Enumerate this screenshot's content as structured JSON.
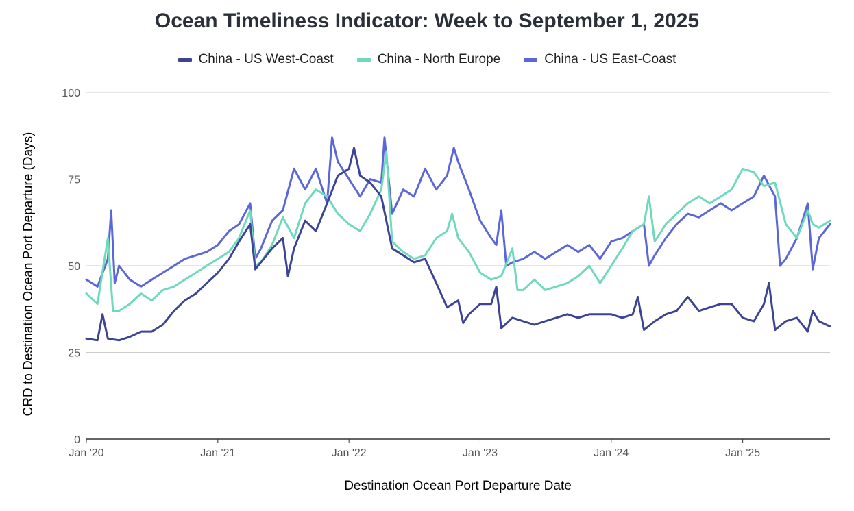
{
  "chart_data": {
    "type": "line",
    "title": "Ocean Timeliness Indicator: Week to September 1, 2025",
    "xlabel": "Destination Ocean Port Departure Date",
    "ylabel": "CRD to Destination Ocean Port Departure (Days)",
    "ylim": [
      0,
      100
    ],
    "yticks": [
      0,
      25,
      50,
      75,
      100
    ],
    "xlim": [
      "2020-01-01",
      "2025-09-01"
    ],
    "xticks": [
      {
        "date": "2020-01-01",
        "label": "Jan '20"
      },
      {
        "date": "2021-01-01",
        "label": "Jan '21"
      },
      {
        "date": "2022-01-01",
        "label": "Jan '22"
      },
      {
        "date": "2023-01-01",
        "label": "Jan '23"
      },
      {
        "date": "2024-01-01",
        "label": "Jan '24"
      },
      {
        "date": "2025-01-01",
        "label": "Jan '25"
      }
    ],
    "grid": true,
    "legend_position": "top",
    "series": [
      {
        "name": "China - US West-Coast",
        "color": "#3d4496",
        "points": [
          [
            "2020-01-01",
            29
          ],
          [
            "2020-02-01",
            28.5
          ],
          [
            "2020-02-15",
            36
          ],
          [
            "2020-03-01",
            29
          ],
          [
            "2020-04-01",
            28.5
          ],
          [
            "2020-05-01",
            29.5
          ],
          [
            "2020-06-01",
            31
          ],
          [
            "2020-07-01",
            31
          ],
          [
            "2020-08-01",
            33
          ],
          [
            "2020-09-01",
            37
          ],
          [
            "2020-10-01",
            40
          ],
          [
            "2020-11-01",
            42
          ],
          [
            "2020-12-01",
            45
          ],
          [
            "2021-01-01",
            48
          ],
          [
            "2021-02-01",
            52
          ],
          [
            "2021-03-01",
            57
          ],
          [
            "2021-04-01",
            62
          ],
          [
            "2021-04-15",
            49
          ],
          [
            "2021-05-01",
            51
          ],
          [
            "2021-06-01",
            55
          ],
          [
            "2021-07-01",
            58
          ],
          [
            "2021-07-15",
            47
          ],
          [
            "2021-08-01",
            55
          ],
          [
            "2021-09-01",
            63
          ],
          [
            "2021-10-01",
            60
          ],
          [
            "2021-11-01",
            68
          ],
          [
            "2021-12-01",
            76
          ],
          [
            "2022-01-01",
            78
          ],
          [
            "2022-01-15",
            84
          ],
          [
            "2022-02-01",
            76
          ],
          [
            "2022-03-01",
            74
          ],
          [
            "2022-04-01",
            70
          ],
          [
            "2022-05-01",
            55
          ],
          [
            "2022-06-01",
            53
          ],
          [
            "2022-07-01",
            51
          ],
          [
            "2022-08-01",
            52
          ],
          [
            "2022-09-01",
            45
          ],
          [
            "2022-10-01",
            38
          ],
          [
            "2022-11-01",
            40
          ],
          [
            "2022-11-15",
            33.5
          ],
          [
            "2022-12-01",
            36
          ],
          [
            "2023-01-01",
            39
          ],
          [
            "2023-02-01",
            39
          ],
          [
            "2023-02-15",
            44
          ],
          [
            "2023-03-01",
            32
          ],
          [
            "2023-04-01",
            35
          ],
          [
            "2023-05-01",
            34
          ],
          [
            "2023-06-01",
            33
          ],
          [
            "2023-07-01",
            34
          ],
          [
            "2023-08-01",
            35
          ],
          [
            "2023-09-01",
            36
          ],
          [
            "2023-10-01",
            35
          ],
          [
            "2023-11-01",
            36
          ],
          [
            "2023-12-01",
            36
          ],
          [
            "2024-01-01",
            36
          ],
          [
            "2024-02-01",
            35
          ],
          [
            "2024-03-01",
            36
          ],
          [
            "2024-03-15",
            41
          ],
          [
            "2024-04-01",
            31.5
          ],
          [
            "2024-05-01",
            34
          ],
          [
            "2024-06-01",
            36
          ],
          [
            "2024-07-01",
            37
          ],
          [
            "2024-08-01",
            41
          ],
          [
            "2024-09-01",
            37
          ],
          [
            "2024-10-01",
            38
          ],
          [
            "2024-11-01",
            39
          ],
          [
            "2024-12-01",
            39
          ],
          [
            "2025-01-01",
            35
          ],
          [
            "2025-02-01",
            34
          ],
          [
            "2025-03-01",
            39
          ],
          [
            "2025-03-15",
            45
          ],
          [
            "2025-04-01",
            31.5
          ],
          [
            "2025-05-01",
            34
          ],
          [
            "2025-06-01",
            35
          ],
          [
            "2025-07-01",
            31
          ],
          [
            "2025-07-15",
            37
          ],
          [
            "2025-08-01",
            34
          ],
          [
            "2025-09-01",
            32.5
          ]
        ]
      },
      {
        "name": "China - North Europe",
        "color": "#6fd9bd",
        "points": [
          [
            "2020-01-01",
            42
          ],
          [
            "2020-02-01",
            39
          ],
          [
            "2020-03-01",
            58
          ],
          [
            "2020-03-15",
            37
          ],
          [
            "2020-04-01",
            37
          ],
          [
            "2020-05-01",
            39
          ],
          [
            "2020-06-01",
            42
          ],
          [
            "2020-07-01",
            40
          ],
          [
            "2020-08-01",
            43
          ],
          [
            "2020-09-01",
            44
          ],
          [
            "2020-10-01",
            46
          ],
          [
            "2020-11-01",
            48
          ],
          [
            "2020-12-01",
            50
          ],
          [
            "2021-01-01",
            52
          ],
          [
            "2021-02-01",
            54
          ],
          [
            "2021-03-01",
            58
          ],
          [
            "2021-04-01",
            66
          ],
          [
            "2021-04-15",
            50
          ],
          [
            "2021-05-01",
            51
          ],
          [
            "2021-06-01",
            56
          ],
          [
            "2021-07-01",
            64
          ],
          [
            "2021-08-01",
            58
          ],
          [
            "2021-09-01",
            68
          ],
          [
            "2021-10-01",
            72
          ],
          [
            "2021-11-01",
            70
          ],
          [
            "2021-12-01",
            65
          ],
          [
            "2022-01-01",
            62
          ],
          [
            "2022-02-01",
            60
          ],
          [
            "2022-03-01",
            65
          ],
          [
            "2022-04-01",
            72
          ],
          [
            "2022-04-15",
            83
          ],
          [
            "2022-05-01",
            57
          ],
          [
            "2022-06-01",
            54
          ],
          [
            "2022-07-01",
            52
          ],
          [
            "2022-08-01",
            53
          ],
          [
            "2022-09-01",
            58
          ],
          [
            "2022-10-01",
            60
          ],
          [
            "2022-10-15",
            65
          ],
          [
            "2022-11-01",
            58
          ],
          [
            "2022-12-01",
            54
          ],
          [
            "2023-01-01",
            48
          ],
          [
            "2023-02-01",
            46
          ],
          [
            "2023-03-01",
            47
          ],
          [
            "2023-04-01",
            55
          ],
          [
            "2023-04-15",
            43
          ],
          [
            "2023-05-01",
            43
          ],
          [
            "2023-06-01",
            46
          ],
          [
            "2023-07-01",
            43
          ],
          [
            "2023-08-01",
            44
          ],
          [
            "2023-09-01",
            45
          ],
          [
            "2023-10-01",
            47
          ],
          [
            "2023-11-01",
            50
          ],
          [
            "2023-12-01",
            45
          ],
          [
            "2024-01-01",
            50
          ],
          [
            "2024-02-01",
            55
          ],
          [
            "2024-03-01",
            60
          ],
          [
            "2024-04-01",
            62
          ],
          [
            "2024-04-15",
            70
          ],
          [
            "2024-05-01",
            57
          ],
          [
            "2024-06-01",
            62
          ],
          [
            "2024-07-01",
            65
          ],
          [
            "2024-08-01",
            68
          ],
          [
            "2024-09-01",
            70
          ],
          [
            "2024-10-01",
            68
          ],
          [
            "2024-11-01",
            70
          ],
          [
            "2024-12-01",
            72
          ],
          [
            "2025-01-01",
            78
          ],
          [
            "2025-02-01",
            77
          ],
          [
            "2025-03-01",
            73
          ],
          [
            "2025-04-01",
            74
          ],
          [
            "2025-05-01",
            62
          ],
          [
            "2025-06-01",
            58
          ],
          [
            "2025-07-01",
            66
          ],
          [
            "2025-07-15",
            62
          ],
          [
            "2025-08-01",
            61
          ],
          [
            "2025-09-01",
            63
          ]
        ]
      },
      {
        "name": "China - US East-Coast",
        "color": "#5b67d8",
        "points": [
          [
            "2020-01-01",
            46
          ],
          [
            "2020-02-01",
            44
          ],
          [
            "2020-03-01",
            52
          ],
          [
            "2020-03-10",
            66
          ],
          [
            "2020-03-20",
            45
          ],
          [
            "2020-04-01",
            50
          ],
          [
            "2020-05-01",
            46
          ],
          [
            "2020-06-01",
            44
          ],
          [
            "2020-07-01",
            46
          ],
          [
            "2020-08-01",
            48
          ],
          [
            "2020-09-01",
            50
          ],
          [
            "2020-10-01",
            52
          ],
          [
            "2020-11-01",
            53
          ],
          [
            "2020-12-01",
            54
          ],
          [
            "2021-01-01",
            56
          ],
          [
            "2021-02-01",
            60
          ],
          [
            "2021-03-01",
            62
          ],
          [
            "2021-04-01",
            68
          ],
          [
            "2021-04-15",
            52
          ],
          [
            "2021-05-01",
            55
          ],
          [
            "2021-06-01",
            63
          ],
          [
            "2021-07-01",
            66
          ],
          [
            "2021-08-01",
            78
          ],
          [
            "2021-09-01",
            72
          ],
          [
            "2021-10-01",
            78
          ],
          [
            "2021-11-01",
            68
          ],
          [
            "2021-11-15",
            87
          ],
          [
            "2021-12-01",
            80
          ],
          [
            "2022-01-01",
            75
          ],
          [
            "2022-02-01",
            70
          ],
          [
            "2022-03-01",
            75
          ],
          [
            "2022-04-01",
            74
          ],
          [
            "2022-04-10",
            87
          ],
          [
            "2022-05-01",
            65
          ],
          [
            "2022-06-01",
            72
          ],
          [
            "2022-07-01",
            70
          ],
          [
            "2022-08-01",
            78
          ],
          [
            "2022-09-01",
            72
          ],
          [
            "2022-10-01",
            76
          ],
          [
            "2022-10-20",
            84
          ],
          [
            "2022-11-01",
            80
          ],
          [
            "2022-12-01",
            72
          ],
          [
            "2023-01-01",
            63
          ],
          [
            "2023-02-01",
            58
          ],
          [
            "2023-02-15",
            56
          ],
          [
            "2023-03-01",
            66
          ],
          [
            "2023-03-15",
            50
          ],
          [
            "2023-04-01",
            51
          ],
          [
            "2023-05-01",
            52
          ],
          [
            "2023-06-01",
            54
          ],
          [
            "2023-07-01",
            52
          ],
          [
            "2023-08-01",
            54
          ],
          [
            "2023-09-01",
            56
          ],
          [
            "2023-10-01",
            54
          ],
          [
            "2023-11-01",
            56
          ],
          [
            "2023-12-01",
            52
          ],
          [
            "2024-01-01",
            57
          ],
          [
            "2024-02-01",
            58
          ],
          [
            "2024-03-01",
            60
          ],
          [
            "2024-04-01",
            62
          ],
          [
            "2024-04-15",
            50
          ],
          [
            "2024-05-01",
            53
          ],
          [
            "2024-06-01",
            58
          ],
          [
            "2024-07-01",
            62
          ],
          [
            "2024-08-01",
            65
          ],
          [
            "2024-09-01",
            64
          ],
          [
            "2024-10-01",
            66
          ],
          [
            "2024-11-01",
            68
          ],
          [
            "2024-12-01",
            66
          ],
          [
            "2025-01-01",
            68
          ],
          [
            "2025-02-01",
            70
          ],
          [
            "2025-03-01",
            76
          ],
          [
            "2025-04-01",
            70
          ],
          [
            "2025-04-15",
            50
          ],
          [
            "2025-05-01",
            52
          ],
          [
            "2025-06-01",
            58
          ],
          [
            "2025-07-01",
            68
          ],
          [
            "2025-07-15",
            49
          ],
          [
            "2025-08-01",
            58
          ],
          [
            "2025-09-01",
            62
          ]
        ]
      }
    ]
  }
}
